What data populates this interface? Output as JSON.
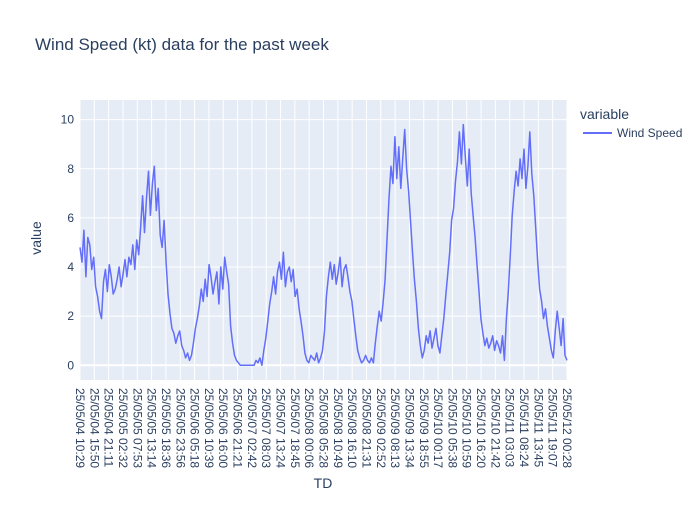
{
  "chart_data": {
    "type": "line",
    "title": "Wind Speed (kt)  data for the past week",
    "xlabel": "TD",
    "ylabel": "value",
    "legend_title": "variable",
    "legend_position": "top-right",
    "grid": true,
    "ylim": [
      -0.6,
      10.8
    ],
    "y_ticks": [
      0,
      2,
      4,
      6,
      8,
      10
    ],
    "x_ticks": [
      "25/05/04 10:29",
      "25/05/04 15:50",
      "25/05/04 21:11",
      "25/05/05 02:32",
      "25/05/05 07:53",
      "25/05/05 13:14",
      "25/05/05 18:36",
      "25/05/05 23:56",
      "25/05/06 05:18",
      "25/05/06 10:39",
      "25/05/06 16:00",
      "25/05/06 21:21",
      "25/05/07 02:42",
      "25/05/07 08:03",
      "25/05/07 13:24",
      "25/05/07 18:45",
      "25/05/08 00:06",
      "25/05/08 05:28",
      "25/05/08 10:49",
      "25/05/08 16:10",
      "25/05/08 21:31",
      "25/05/09 02:52",
      "25/05/09 08:13",
      "25/05/09 13:34",
      "25/05/09 18:55",
      "25/05/10 00:17",
      "25/05/10 05:38",
      "25/05/10 10:59",
      "25/05/10 16:20",
      "25/05/10 21:42",
      "25/05/11 03:03",
      "25/05/11 08:24",
      "25/05/11 13:45",
      "25/05/11 19:07",
      "25/05/12 00:28"
    ],
    "series": [
      {
        "name": "Wind Speed",
        "color": "#636efa",
        "values": [
          4.8,
          4.2,
          5.5,
          3.6,
          5.2,
          4.9,
          3.9,
          4.4,
          3.2,
          2.8,
          2.2,
          1.9,
          3.4,
          3.9,
          3.0,
          4.1,
          3.6,
          2.9,
          3.1,
          3.5,
          4.0,
          3.2,
          3.7,
          4.3,
          3.6,
          4.4,
          4.1,
          4.9,
          3.9,
          5.1,
          4.5,
          5.6,
          6.9,
          5.4,
          6.8,
          7.9,
          6.1,
          7.4,
          8.1,
          6.3,
          7.2,
          5.3,
          4.8,
          5.9,
          4.2,
          2.9,
          2.1,
          1.5,
          1.3,
          0.9,
          1.2,
          1.4,
          0.8,
          0.6,
          0.3,
          0.5,
          0.2,
          0.4,
          0.9,
          1.5,
          1.9,
          2.4,
          3.1,
          2.6,
          3.5,
          2.8,
          4.1,
          3.6,
          2.9,
          3.4,
          3.8,
          2.5,
          4.0,
          3.1,
          4.4,
          3.8,
          3.3,
          1.6,
          0.9,
          0.4,
          0.2,
          0.1,
          0.0,
          0.0,
          0.0,
          0.0,
          0.0,
          0.0,
          0.0,
          0.0,
          0.2,
          0.1,
          0.3,
          0.0,
          0.6,
          1.1,
          1.8,
          2.5,
          3.0,
          3.6,
          2.9,
          3.8,
          4.2,
          3.5,
          4.6,
          3.2,
          3.8,
          4.0,
          3.4,
          3.9,
          2.8,
          3.1,
          2.3,
          1.8,
          1.2,
          0.5,
          0.2,
          0.1,
          0.4,
          0.3,
          0.2,
          0.5,
          0.1,
          0.3,
          0.6,
          1.4,
          2.8,
          3.6,
          4.2,
          3.5,
          4.1,
          3.3,
          3.8,
          4.4,
          3.2,
          3.9,
          4.1,
          3.6,
          3.0,
          2.6,
          1.9,
          1.2,
          0.6,
          0.3,
          0.1,
          0.2,
          0.4,
          0.2,
          0.1,
          0.3,
          0.1,
          0.9,
          1.6,
          2.2,
          1.8,
          2.6,
          3.5,
          5.2,
          6.8,
          8.1,
          7.4,
          9.3,
          7.6,
          8.9,
          7.2,
          8.4,
          9.6,
          8.0,
          7.1,
          5.9,
          4.6,
          3.5,
          2.6,
          1.5,
          0.8,
          0.3,
          0.6,
          1.2,
          0.9,
          1.4,
          0.7,
          1.1,
          1.5,
          0.8,
          0.5,
          1.2,
          1.9,
          2.8,
          3.7,
          4.6,
          5.9,
          6.4,
          7.5,
          8.3,
          9.5,
          8.2,
          9.8,
          8.5,
          7.3,
          8.8,
          7.0,
          6.1,
          5.2,
          4.1,
          3.0,
          1.9,
          1.3,
          0.8,
          1.1,
          0.7,
          0.9,
          1.2,
          0.6,
          1.0,
          0.8,
          0.5,
          1.2,
          0.2,
          1.9,
          3.0,
          4.5,
          6.1,
          7.1,
          7.9,
          7.3,
          8.4,
          7.6,
          8.8,
          7.2,
          8.1,
          9.5,
          7.8,
          6.9,
          5.6,
          4.2,
          3.1,
          2.6,
          1.9,
          2.3,
          1.6,
          1.1,
          0.6,
          0.3,
          1.4,
          2.2,
          1.5,
          0.8,
          1.9,
          0.4,
          0.2
        ]
      }
    ]
  }
}
